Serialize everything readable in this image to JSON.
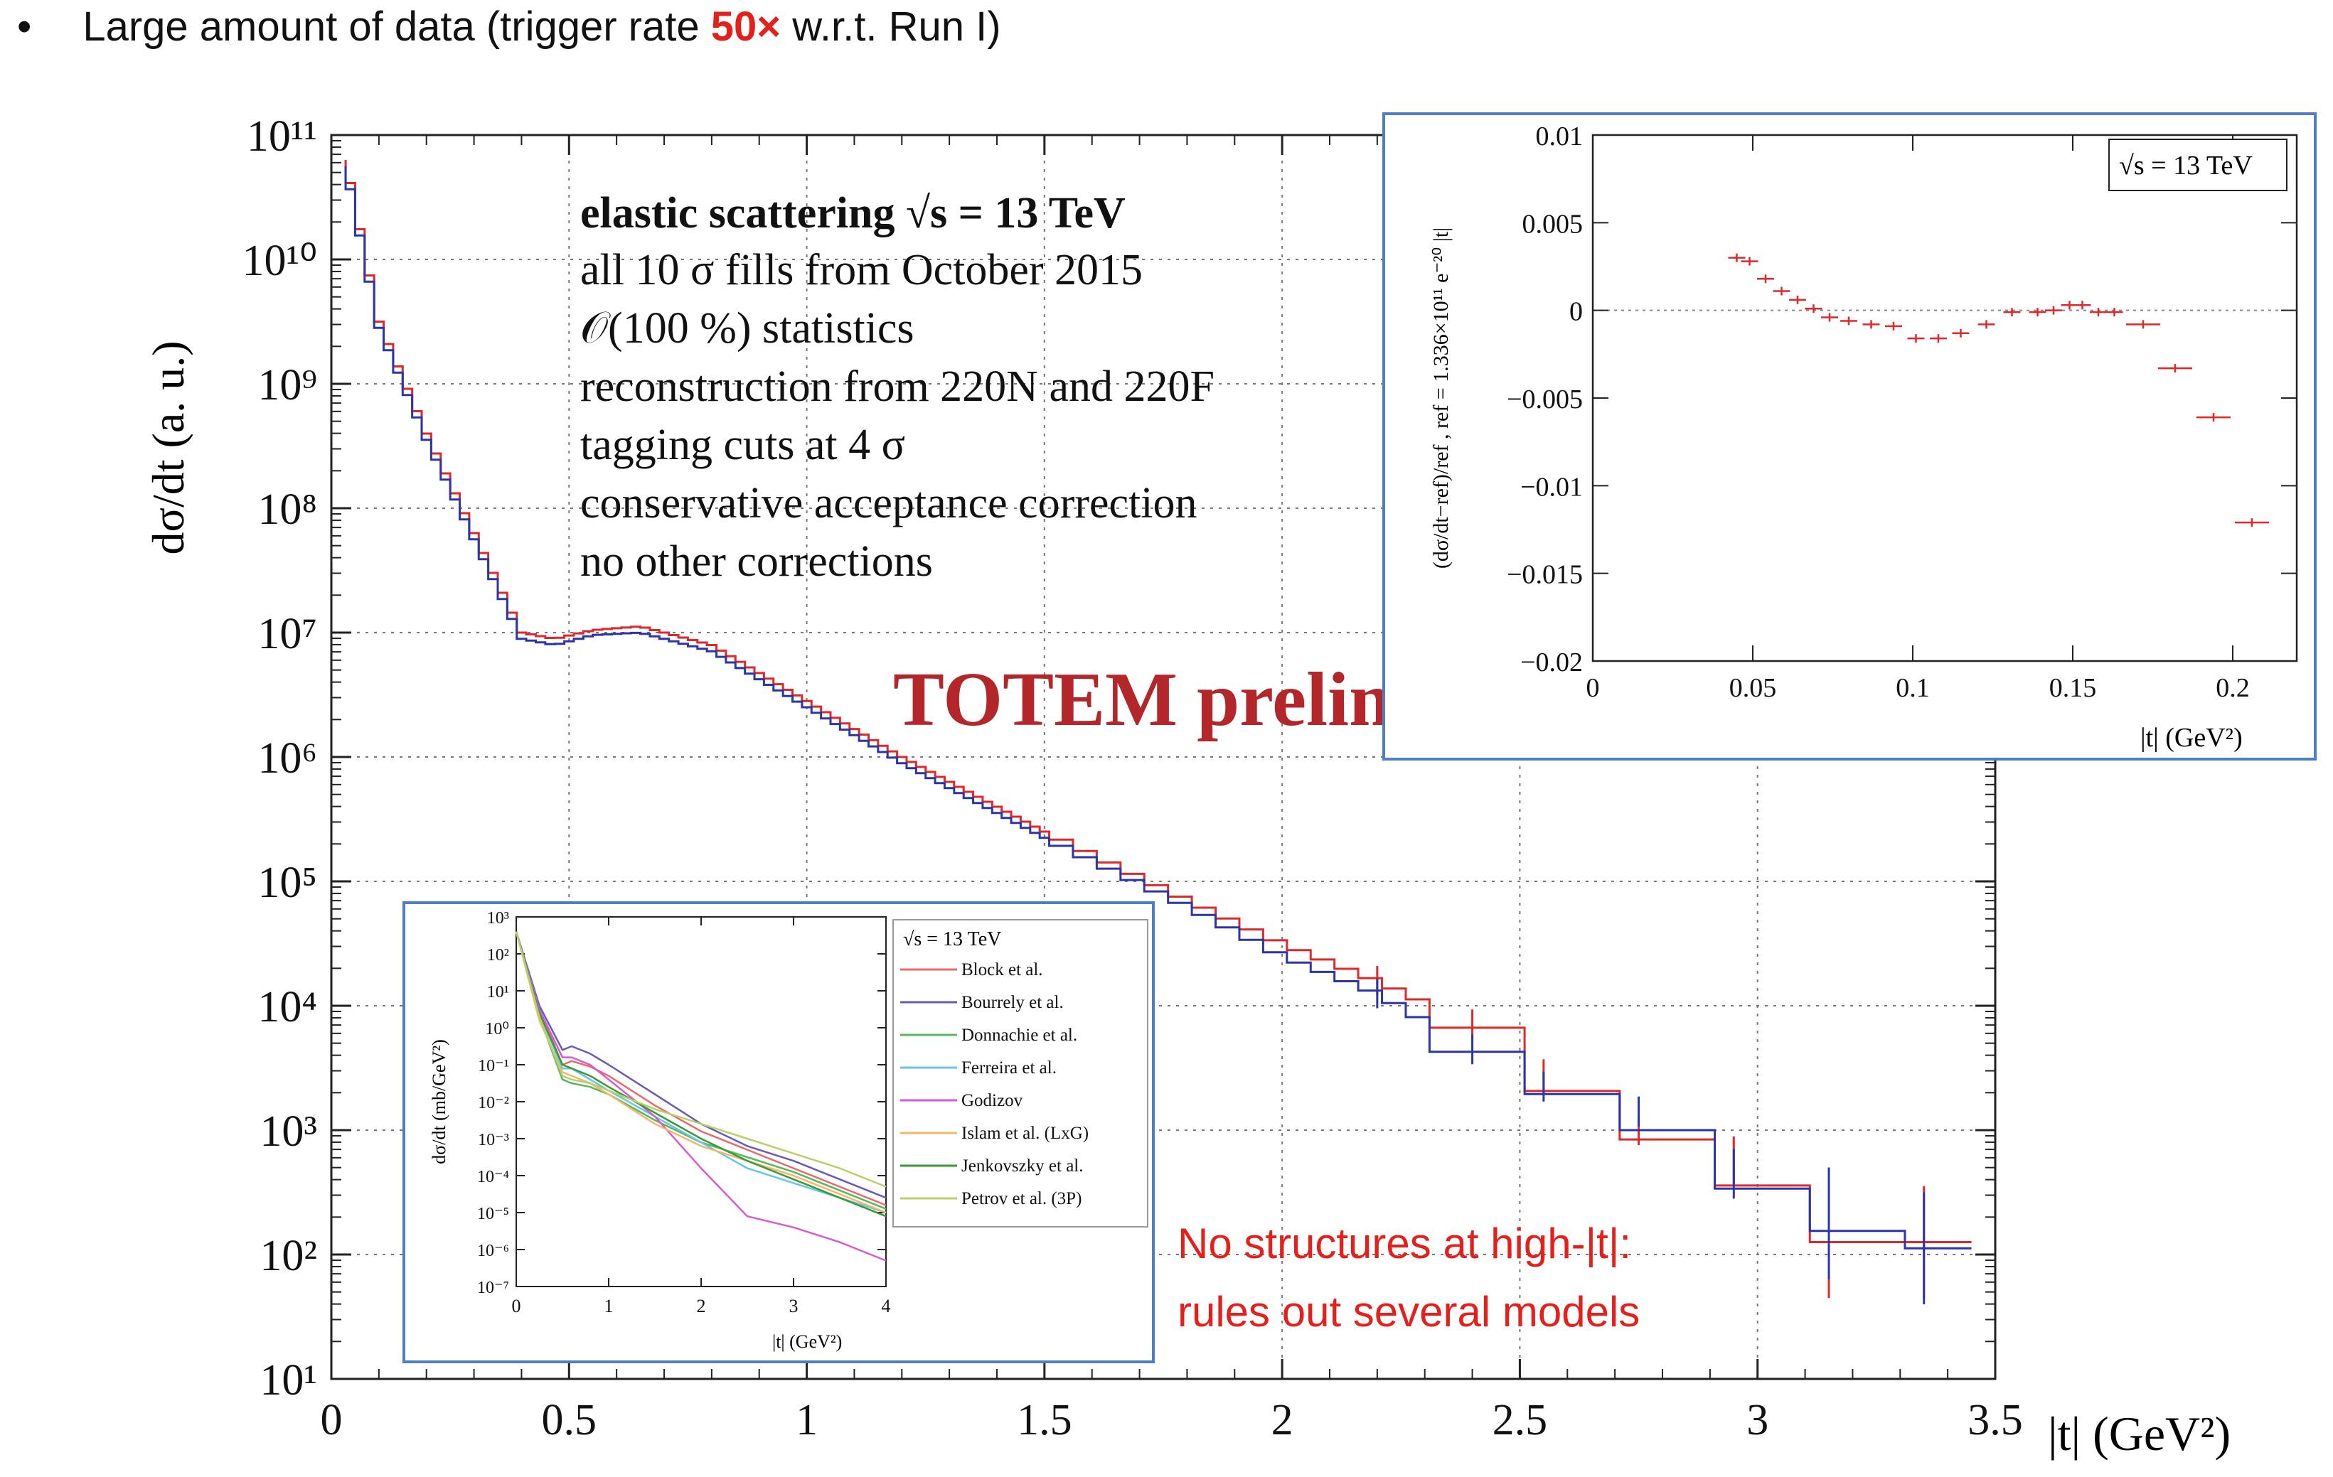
{
  "headline": {
    "bullet": "•",
    "text_before": "Large amount of data (trigger rate ",
    "text_highlight": "50×",
    "text_after": " w.r.t. Run I)"
  },
  "colors": {
    "red": "#e0282a",
    "blue": "#2a36a8",
    "accent": "#e4201c",
    "frame": "#4f7fc0",
    "totem": "#b3262a"
  },
  "chart_data": [
    {
      "type": "line",
      "name": "main-dsigma-dt",
      "ylabel": "dσ/dt   (a. u.)",
      "xlabel": "|t|   (GeV²)",
      "xlim": [
        0,
        3.5
      ],
      "ylim_log10": [
        1,
        11
      ],
      "x_ticks": [
        "0",
        "0.5",
        "1",
        "1.5",
        "2",
        "2.5",
        "3",
        "3.5"
      ],
      "y_ticks": [
        "10¹",
        "10²",
        "10³",
        "10⁴",
        "10⁵",
        "10⁶",
        "10⁷",
        "10⁸",
        "10⁹",
        "10¹⁰",
        "10¹¹"
      ],
      "annotation_title": "elastic scattering √s = 13 TeV",
      "annotation_lines": [
        "all 10 σ fills from October 2015",
        "𝒪(100 %) statistics",
        "reconstruction from 220N and 220F",
        "tagging cuts at 4 σ",
        "conservative acceptance correction",
        "no other corrections"
      ],
      "watermark": "TOTEM preliminary",
      "note_lines": [
        "No structures at high-|t|:",
        "rules out several models"
      ],
      "series": [
        {
          "name": "red",
          "x": [
            0.03,
            0.1,
            0.2,
            0.3,
            0.4,
            0.47,
            0.55,
            0.65,
            0.8,
            1.0,
            1.2,
            1.5,
            1.8,
            2.0,
            2.2,
            2.4,
            2.55,
            2.75,
            2.95,
            3.15,
            3.35
          ],
          "log10y": [
            10.8,
            9.5,
            8.6,
            7.8,
            7.0,
            6.95,
            7.02,
            7.05,
            6.9,
            6.45,
            6.0,
            5.4,
            4.85,
            4.5,
            4.2,
            3.85,
            3.45,
            3.0,
            2.75,
            2.1,
            2.1
          ]
        },
        {
          "name": "blue",
          "x": [
            0.03,
            0.1,
            0.2,
            0.3,
            0.4,
            0.47,
            0.55,
            0.65,
            0.8,
            1.0,
            1.2,
            1.5,
            1.8,
            2.0,
            2.2,
            2.4,
            2.55,
            2.75,
            2.95,
            3.15,
            3.35
          ],
          "log10y": [
            10.75,
            9.45,
            8.55,
            7.75,
            6.95,
            6.9,
            6.98,
            7.0,
            6.85,
            6.4,
            5.95,
            5.35,
            4.8,
            4.4,
            4.1,
            3.65,
            3.35,
            3.15,
            2.65,
            2.25,
            2.05
          ]
        }
      ]
    },
    {
      "type": "scatter",
      "name": "inset-relative-residual",
      "ylabel": "(dσ/dt−ref)/ref ,  ref = 1.336×10¹¹ e⁻²⁰ |t|",
      "xlabel": "|t|   (GeV²)",
      "legend": "√s = 13 TeV",
      "xlim": [
        0,
        0.22
      ],
      "ylim": [
        -0.02,
        0.01
      ],
      "x_ticks": [
        "0",
        "0.05",
        "0.1",
        "0.15",
        "0.2"
      ],
      "y_ticks": [
        "0.01",
        "0.005",
        "0",
        "−0.005",
        "−0.01",
        "−0.015",
        "−0.02"
      ],
      "x": [
        0.045,
        0.049,
        0.054,
        0.059,
        0.064,
        0.069,
        0.074,
        0.08,
        0.087,
        0.094,
        0.101,
        0.108,
        0.115,
        0.123,
        0.131,
        0.139,
        0.144,
        0.149,
        0.153,
        0.158,
        0.163,
        0.172,
        0.182,
        0.194,
        0.206
      ],
      "y": [
        0.003,
        0.0028,
        0.0018,
        0.0011,
        0.0006,
        0.0001,
        -0.0004,
        -0.0006,
        -0.0008,
        -0.0009,
        -0.0016,
        -0.0016,
        -0.0013,
        -0.0008,
        -0.0001,
        -0.0001,
        0.0,
        0.0003,
        0.0003,
        -0.0001,
        -0.0001,
        -0.0008,
        -0.0033,
        -0.0061,
        -0.0121
      ]
    },
    {
      "type": "line",
      "name": "inset-model-comparison",
      "ylabel": "dσ/dt   (mb/GeV²)",
      "xlabel": "|t|   (GeV²)",
      "legend_title": "√s = 13 TeV",
      "xlim": [
        0,
        4
      ],
      "ylim_log10": [
        -7,
        3
      ],
      "x_ticks": [
        "0",
        "1",
        "2",
        "3",
        "4"
      ],
      "y_ticks": [
        "10³",
        "10²",
        "10¹",
        "10⁰",
        "10⁻¹",
        "10⁻²",
        "10⁻³",
        "10⁻⁴",
        "10⁻⁵",
        "10⁻⁶",
        "10⁻⁷"
      ],
      "x": [
        0,
        0.25,
        0.5,
        0.6,
        0.8,
        1.0,
        1.5,
        2.0,
        2.5,
        3.0,
        3.5,
        4.0
      ],
      "series": [
        {
          "name": "Block et al.",
          "color": "#e86a6a",
          "log10y": [
            2.6,
            0.5,
            -1.0,
            -0.9,
            -1.05,
            -1.3,
            -2.1,
            -2.8,
            -3.3,
            -3.8,
            -4.3,
            -4.8
          ]
        },
        {
          "name": "Bourrely et al.",
          "color": "#6a5ab8",
          "log10y": [
            2.6,
            0.6,
            -0.6,
            -0.5,
            -0.7,
            -1.0,
            -1.8,
            -2.6,
            -3.2,
            -3.6,
            -4.1,
            -4.6
          ]
        },
        {
          "name": "Donnachie et al.",
          "color": "#5ab85a",
          "log10y": [
            2.6,
            0.3,
            -1.4,
            -1.5,
            -1.6,
            -1.8,
            -2.5,
            -3.1,
            -3.5,
            -3.9,
            -4.4,
            -4.9
          ]
        },
        {
          "name": "Ferreira et al.",
          "color": "#6ac4e8",
          "log10y": [
            2.6,
            0.4,
            -1.1,
            -1.1,
            -1.4,
            -1.7,
            -2.4,
            -3.1,
            -3.8,
            -4.2,
            -4.6,
            -5.0
          ]
        },
        {
          "name": "Godizov",
          "color": "#d85ad0",
          "log10y": [
            2.6,
            0.5,
            -0.8,
            -0.8,
            -1.0,
            -1.4,
            -2.4,
            -3.8,
            -5.1,
            -5.4,
            -5.8,
            -6.3
          ]
        },
        {
          "name": "Islam et al. (LxG)",
          "color": "#f0b86a",
          "log10y": [
            2.6,
            0.2,
            -1.2,
            -1.3,
            -1.5,
            -1.8,
            -2.6,
            -3.2,
            -3.6,
            -4.0,
            -4.5,
            -5.0
          ]
        },
        {
          "name": "Jenkovszky et al.",
          "color": "#3a9a3a",
          "log10y": [
            2.6,
            0.4,
            -1.0,
            -1.1,
            -1.3,
            -1.6,
            -2.3,
            -3.0,
            -3.6,
            -4.1,
            -4.6,
            -5.1
          ]
        },
        {
          "name": "Petrov et al. (3P)",
          "color": "#b8d06a",
          "log10y": [
            2.6,
            0.3,
            -1.3,
            -1.4,
            -1.5,
            -1.7,
            -2.2,
            -2.6,
            -3.0,
            -3.4,
            -3.8,
            -4.3
          ]
        }
      ]
    }
  ]
}
